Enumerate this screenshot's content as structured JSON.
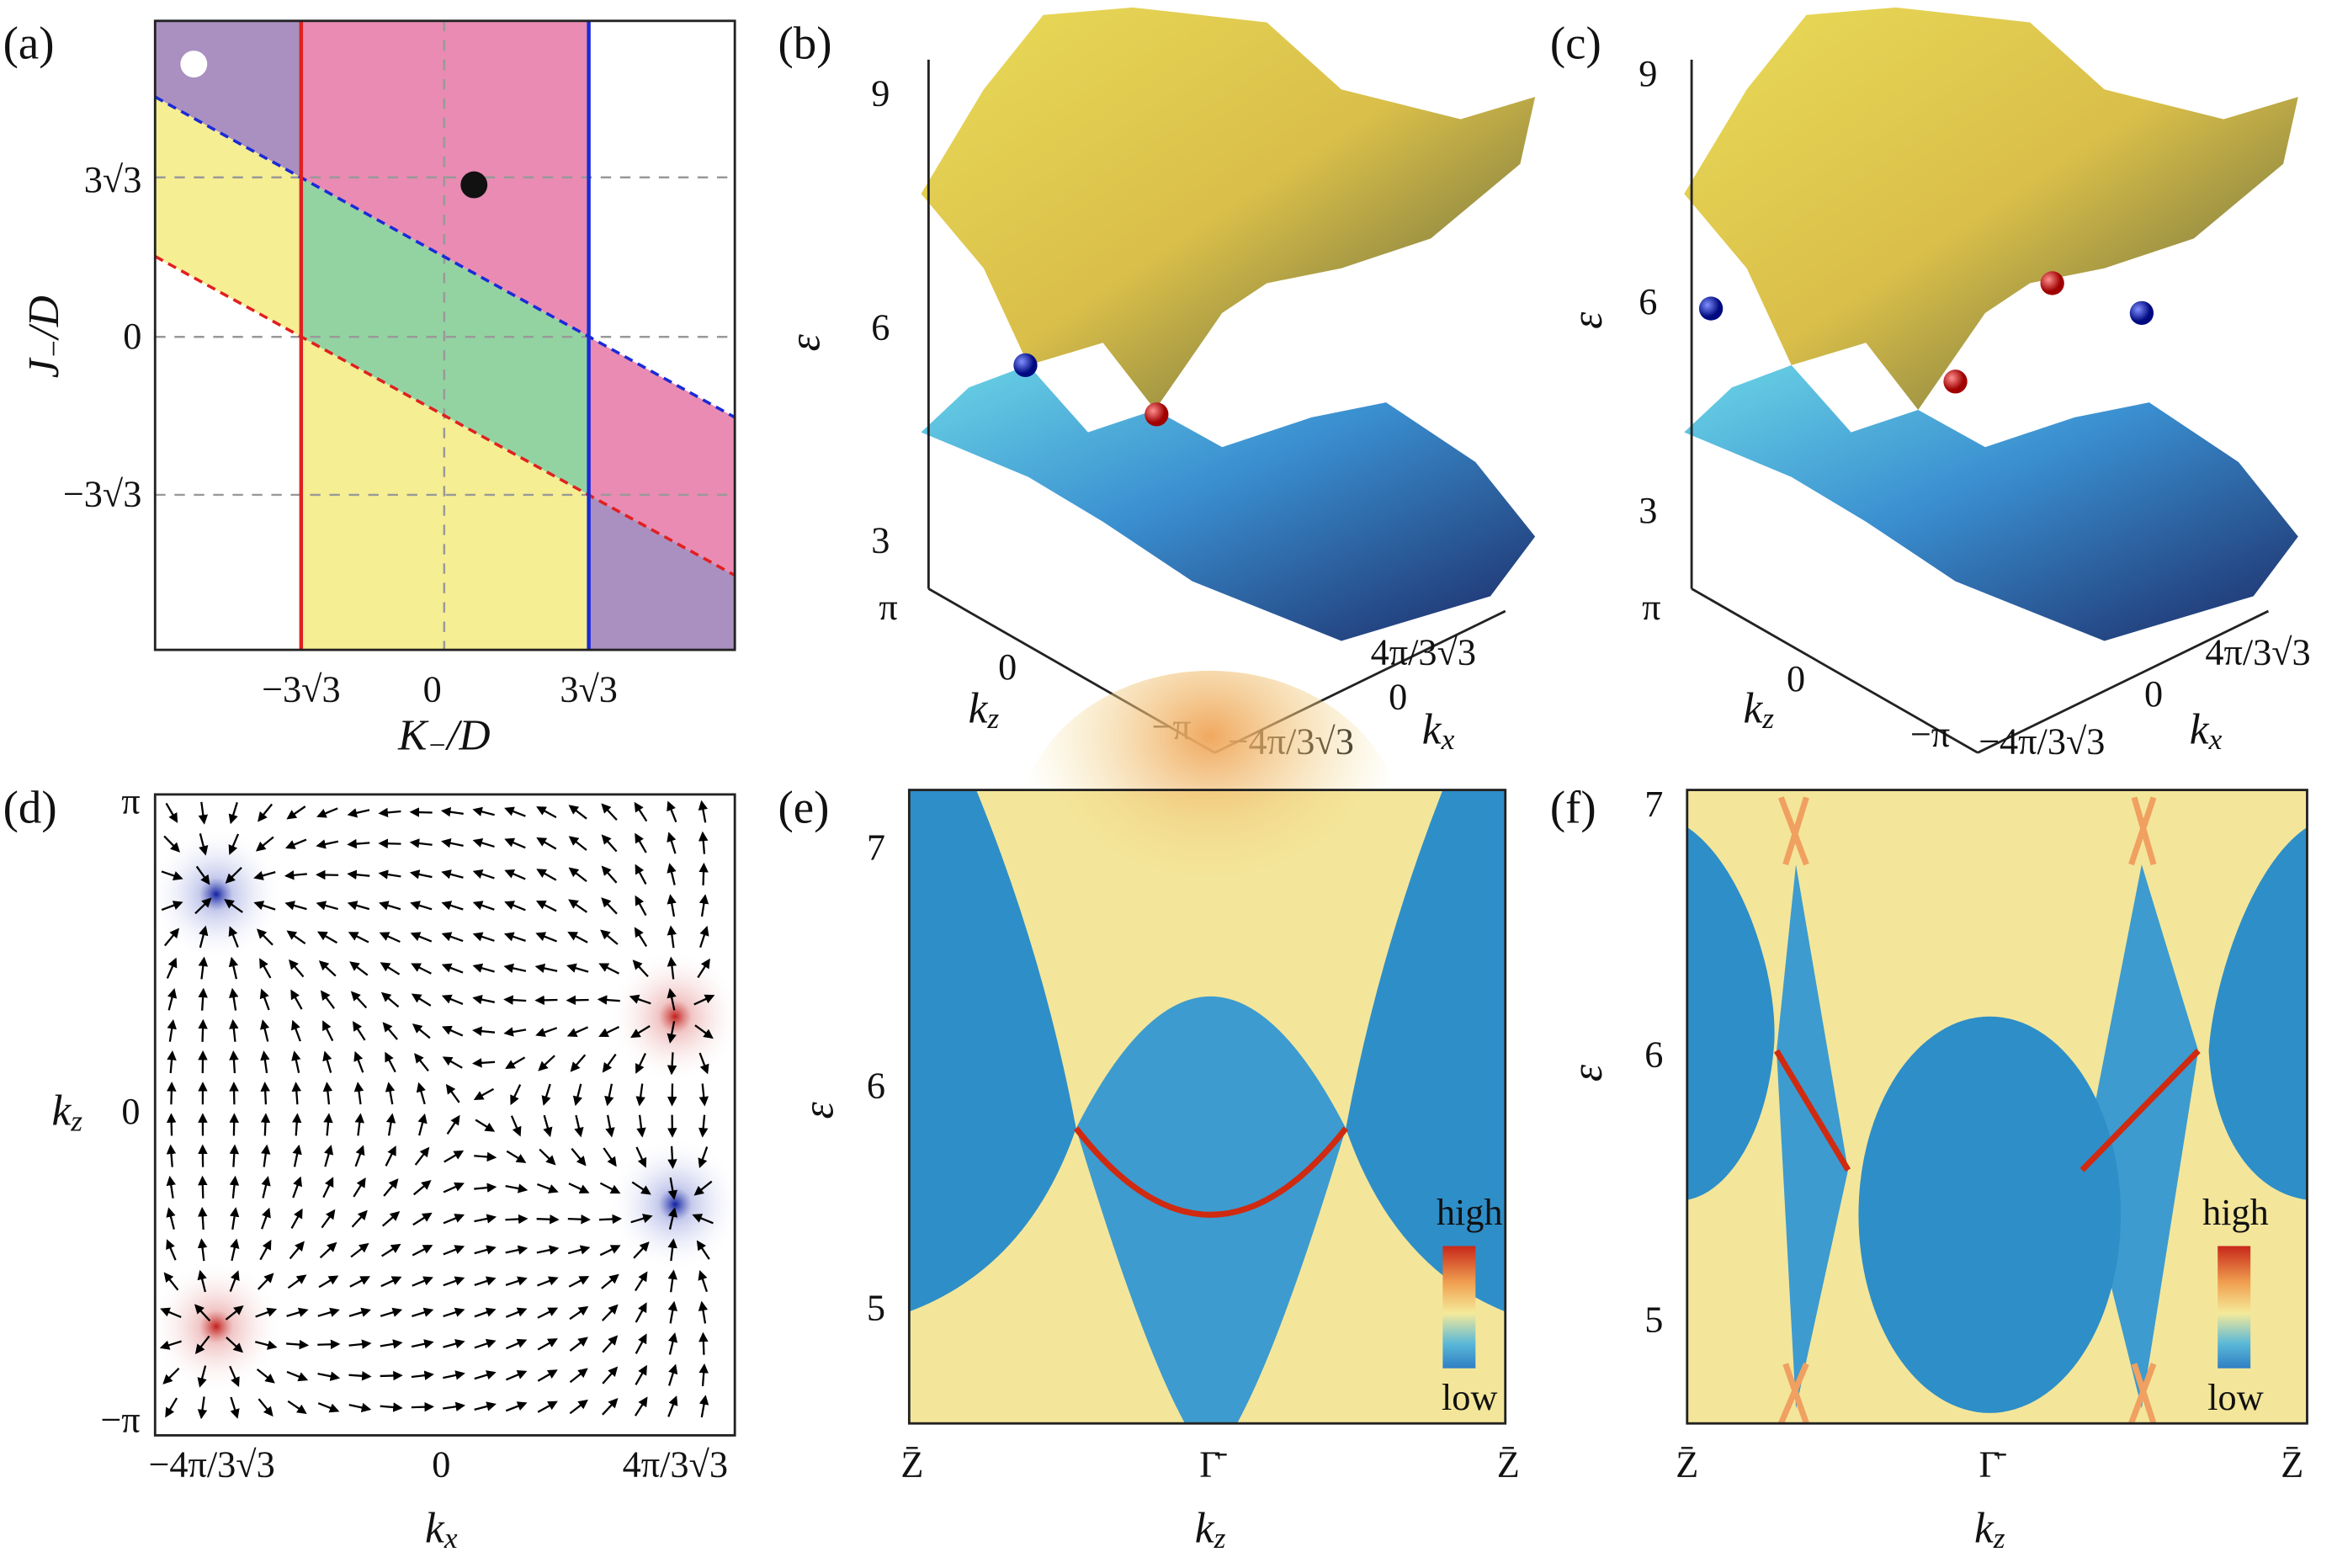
{
  "panels": [
    {
      "label": "(a)",
      "y_ticks": [
        "3√3",
        "0",
        "−3√3"
      ],
      "x_ticks": [
        "−3√3",
        "0",
        "3√3"
      ],
      "x_label": {
        "symbol": "K",
        "sub": "−",
        "rest": "/D"
      },
      "y_label": {
        "symbol": "J",
        "sub": "−",
        "rest": "/D"
      }
    },
    {
      "label": "(b)",
      "energy_ticks": [
        "9",
        "6",
        "3"
      ],
      "energy_label": "ε",
      "kz_ticks": [
        "π",
        "0",
        "−π"
      ],
      "kz_label": {
        "symbol": "k",
        "sub": "z"
      },
      "kx_ticks": [
        "4π/3√3",
        "0",
        "−4π/3√3"
      ],
      "kx_label": {
        "symbol": "k",
        "sub": "x"
      }
    },
    {
      "label": "(c)",
      "energy_ticks": [
        "9",
        "6",
        "3"
      ],
      "energy_label": "ε",
      "kz_ticks": [
        "π",
        "0",
        "−π"
      ],
      "kz_label": {
        "symbol": "k",
        "sub": "z"
      },
      "kx_ticks": [
        "4π/3√3",
        "0",
        "−4π/3√3"
      ],
      "kx_label": {
        "symbol": "k",
        "sub": "x"
      }
    },
    {
      "label": "(d)",
      "y_ticks": [
        "π",
        "0",
        "−π"
      ],
      "y_label": {
        "symbol": "k",
        "sub": "z"
      },
      "x_ticks": [
        "−4π/3√3",
        "0",
        "4π/3√3"
      ],
      "x_label": {
        "symbol": "k",
        "sub": "x"
      }
    },
    {
      "label": "(e)",
      "y_ticks": [
        "7",
        "6",
        "5"
      ],
      "y_label": "ε",
      "x_ticks": [
        "Z̄",
        "Γ̄",
        "Z̄"
      ],
      "x_label": {
        "symbol": "k",
        "sub": "z"
      },
      "colorbar": {
        "high": "high",
        "low": "low"
      }
    },
    {
      "label": "(f)",
      "y_ticks": [
        "7",
        "6",
        "5"
      ],
      "y_label": "ε",
      "x_ticks": [
        "Z̄",
        "Γ̄",
        "Z̄"
      ],
      "x_label": {
        "symbol": "k",
        "sub": "z"
      },
      "colorbar": {
        "high": "high",
        "low": "low"
      }
    }
  ]
}
